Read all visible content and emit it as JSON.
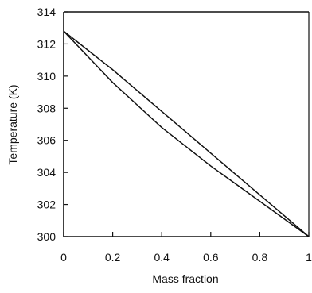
{
  "chart_data": {
    "type": "line",
    "title": "",
    "xlabel": "Mass fraction",
    "ylabel": "Temperature (K)",
    "xlim": [
      0,
      1
    ],
    "ylim": [
      300,
      314
    ],
    "xticks": [
      0,
      0.2,
      0.4,
      0.6,
      0.8,
      1
    ],
    "xtick_labels": [
      "0",
      "0.2",
      "0.4",
      "0.6",
      "0.8",
      "1"
    ],
    "yticks": [
      300,
      302,
      304,
      306,
      308,
      310,
      312,
      314
    ],
    "ytick_labels": [
      "300",
      "302",
      "304",
      "306",
      "308",
      "310",
      "312",
      "314"
    ],
    "grid": false,
    "line_color": "#111111",
    "series": [
      {
        "x": [
          0,
          0.1,
          0.2,
          0.3,
          0.4,
          0.5,
          0.6,
          0.7,
          0.8,
          0.9,
          1.0
        ],
        "y": [
          312.8,
          311.6,
          310.4,
          309.1,
          307.8,
          306.5,
          305.2,
          303.9,
          302.6,
          301.3,
          300.0
        ]
      },
      {
        "x": [
          0,
          0.1,
          0.2,
          0.3,
          0.4,
          0.5,
          0.6,
          0.7,
          0.8,
          0.9,
          1.0
        ],
        "y": [
          312.8,
          311.2,
          309.6,
          308.2,
          306.8,
          305.6,
          304.4,
          303.3,
          302.2,
          301.1,
          300.0
        ]
      }
    ]
  }
}
